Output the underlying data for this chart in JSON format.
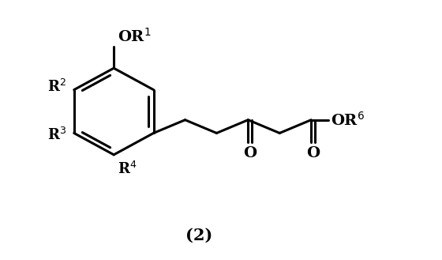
{
  "title": "(2)",
  "bg_color": "#ffffff",
  "line_color": "#000000",
  "line_width": 2.2,
  "font_size_label": 13,
  "font_size_title": 15,
  "fig_width": 5.6,
  "fig_height": 3.29,
  "dpi": 100,
  "xlim": [
    0,
    10
  ],
  "ylim": [
    0,
    6.2
  ]
}
